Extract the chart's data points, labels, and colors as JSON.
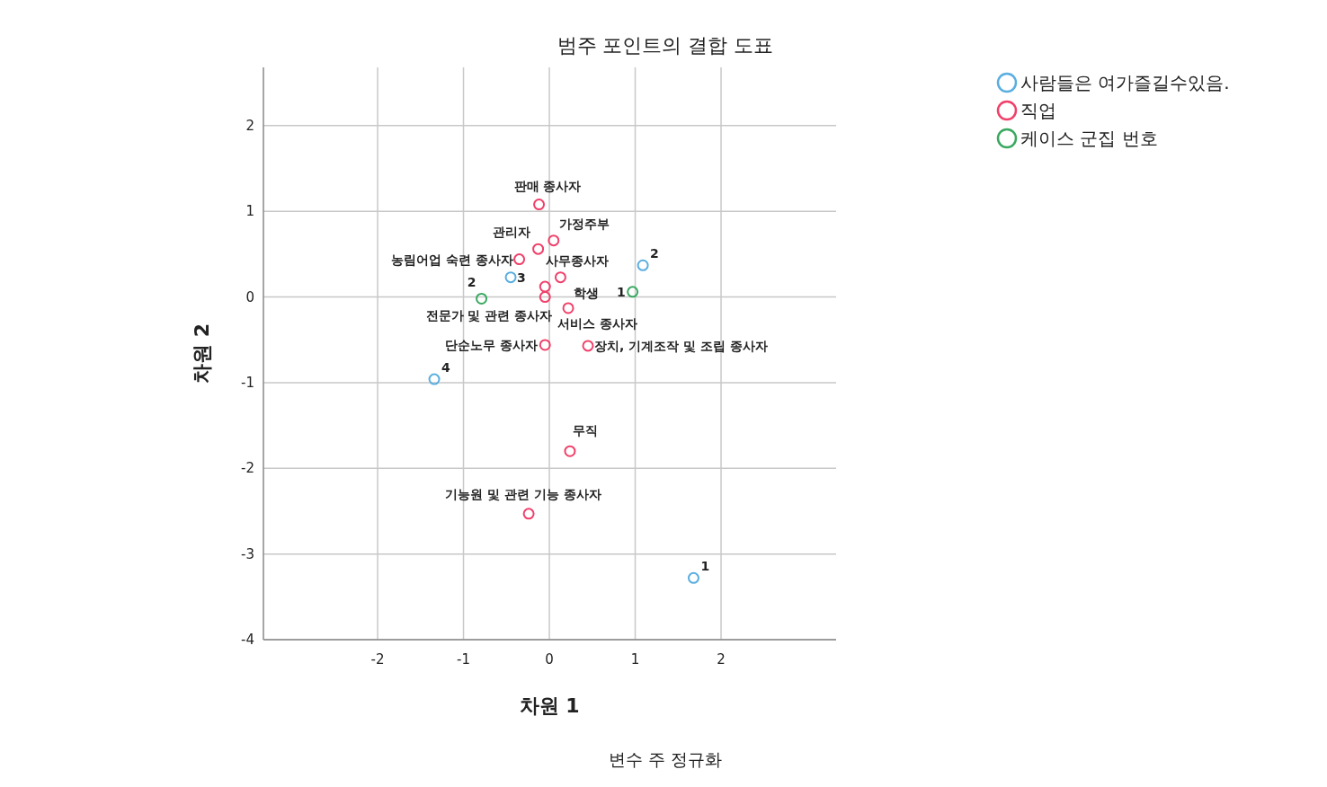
{
  "chart_data": {
    "type": "scatter",
    "title": "범주 포인트의 결합 도표",
    "xlabel": "차원 1",
    "ylabel": "차원 2",
    "xlim": [
      -3.33,
      3.34
    ],
    "ylim": [
      -4,
      2.68
    ],
    "xticks": [
      -2,
      -1,
      0,
      1,
      2
    ],
    "yticks": [
      -4,
      -3,
      -2,
      -1,
      0,
      1,
      2
    ],
    "grid": true,
    "legend": "top right",
    "marker": "circle",
    "series": [
      {
        "name": "사람들은 여가즐길수있음.",
        "color": "#5aaee0",
        "x": [
          1.68,
          1.09,
          -0.45,
          -1.34
        ],
        "values": [
          -3.28,
          0.37,
          0.23,
          -0.96
        ]
      },
      {
        "name": "직업",
        "color": "#f0406a",
        "x": [
          -0.12,
          0.05,
          -0.13,
          -0.35,
          0.13,
          -0.05,
          -0.05,
          0.22,
          -0.05,
          0.45,
          0.24,
          -0.24
        ],
        "values": [
          1.08,
          0.66,
          0.56,
          0.44,
          0.23,
          0.12,
          0.0,
          -0.13,
          -0.56,
          -0.57,
          -1.8,
          -2.53
        ]
      },
      {
        "name": "케이스 군집 번호",
        "color": "#3aa860",
        "x": [
          0.97,
          -0.79
        ],
        "values": [
          0.06,
          -0.02
        ]
      }
    ],
    "annotations": [
      {
        "text": "1",
        "x": 1.68,
        "y": -3.28
      },
      {
        "text": "2",
        "x": 1.09,
        "y": 0.37
      },
      {
        "text": "3",
        "x": -0.45,
        "y": 0.23
      },
      {
        "text": "4",
        "x": -1.34,
        "y": -0.96
      },
      {
        "text": "판매 종사자",
        "x": -0.12,
        "y": 1.08
      },
      {
        "text": "가정주부",
        "x": 0.05,
        "y": 0.66
      },
      {
        "text": "관리자",
        "x": -0.13,
        "y": 0.56
      },
      {
        "text": "농림어업 숙련 종사자",
        "x": -0.35,
        "y": 0.44
      },
      {
        "text": "사무종사자",
        "x": 0.13,
        "y": 0.23
      },
      {
        "text": "학생",
        "x": -0.05,
        "y": 0.12
      },
      {
        "text": "전문가 및 관련 종사자",
        "x": -0.05,
        "y": 0.0
      },
      {
        "text": "서비스 종사자",
        "x": 0.22,
        "y": -0.13
      },
      {
        "text": "단순노무 종사자",
        "x": -0.05,
        "y": -0.56
      },
      {
        "text": "장치, 기계조작 및 조립 종사자",
        "x": 0.45,
        "y": -0.57
      },
      {
        "text": "무직",
        "x": 0.24,
        "y": -1.8
      },
      {
        "text": "기능원 및 관련 기능 종사자",
        "x": -0.24,
        "y": -2.53
      },
      {
        "text": "1",
        "x": 0.97,
        "y": 0.06
      },
      {
        "text": "2",
        "x": -0.79,
        "y": -0.02
      },
      "변수 주 정규화"
    ]
  }
}
